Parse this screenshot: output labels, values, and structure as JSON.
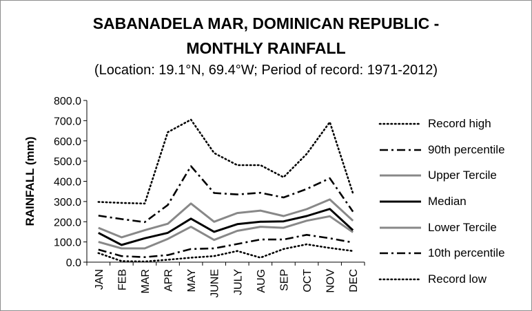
{
  "chart_data": {
    "type": "line",
    "title_line1": "SABANADELA MAR, DOMINICAN REPUBLIC -",
    "title_line2": "MONTHLY RAINFALL",
    "subtitle": "(Location: 19.1°N, 69.4°W; Period of record: 1971-2012)",
    "xlabel": "",
    "ylabel": "RAINFALL (mm)",
    "ylim": [
      0,
      800
    ],
    "yticks": [
      "0.0",
      "100.0",
      "200.0",
      "300.0",
      "400.0",
      "500.0",
      "600.0",
      "700.0",
      "800.0"
    ],
    "categories": [
      "JAN",
      "FEB",
      "MAR",
      "APR",
      "MAY",
      "JUNE",
      "JULY",
      "AUG",
      "SEP",
      "OCT",
      "NOV",
      "DEC"
    ],
    "grid": "none",
    "legend_position": "right",
    "series": [
      {
        "name": "Record high",
        "style": "dotted",
        "color": "#000000",
        "values": [
          298,
          293,
          290,
          643,
          705,
          540,
          480,
          480,
          420,
          535,
          693,
          340
        ]
      },
      {
        "name": "90th percentile",
        "style": "dashdot",
        "color": "#000000",
        "values": [
          230,
          213,
          198,
          283,
          475,
          342,
          335,
          343,
          320,
          362,
          415,
          250
        ]
      },
      {
        "name": "Upper Tercile",
        "style": "solid",
        "color": "#888888",
        "values": [
          170,
          123,
          158,
          190,
          290,
          200,
          243,
          255,
          228,
          262,
          310,
          205
        ]
      },
      {
        "name": "Median",
        "style": "solid",
        "color": "#000000",
        "values": [
          145,
          85,
          118,
          145,
          215,
          150,
          188,
          200,
          202,
          228,
          263,
          158
        ]
      },
      {
        "name": "Lower Tercile",
        "style": "solid",
        "color": "#888888",
        "values": [
          100,
          68,
          68,
          115,
          175,
          110,
          155,
          175,
          170,
          205,
          227,
          148
        ]
      },
      {
        "name": "10th percentile",
        "style": "dashdot",
        "color": "#000000",
        "values": [
          62,
          30,
          25,
          35,
          65,
          68,
          90,
          112,
          112,
          135,
          118,
          97
        ]
      },
      {
        "name": "Record low",
        "style": "dotted",
        "color": "#000000",
        "values": [
          45,
          5,
          3,
          12,
          22,
          30,
          55,
          22,
          65,
          88,
          70,
          55
        ]
      }
    ]
  }
}
